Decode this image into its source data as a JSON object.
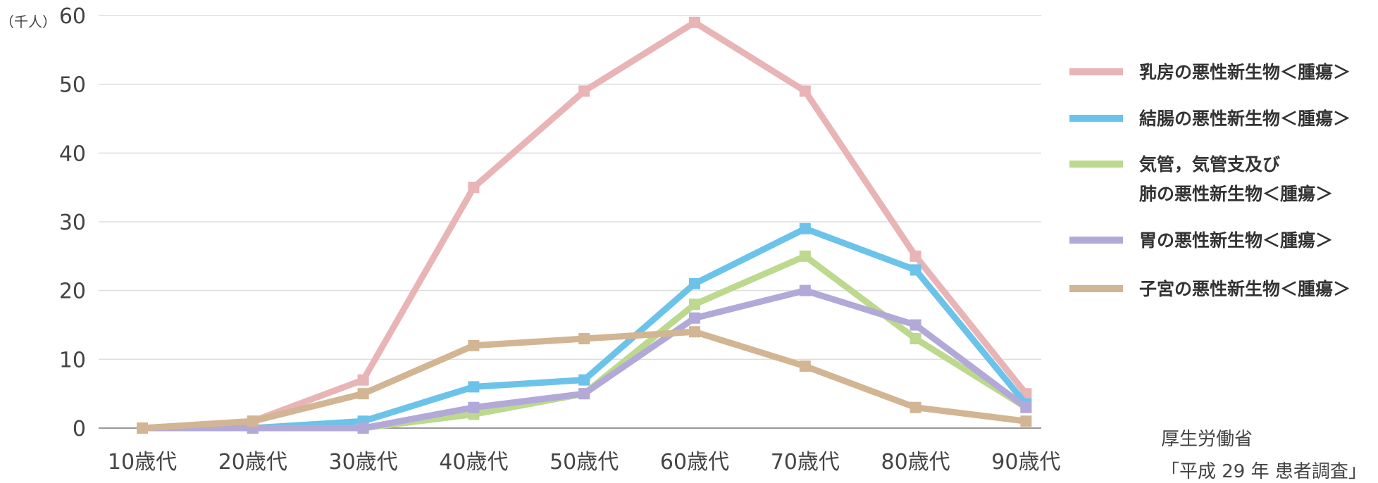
{
  "chart_data": {
    "type": "line",
    "unit_label": "（千人）",
    "categories": [
      "10歳代",
      "20歳代",
      "30歳代",
      "40歳代",
      "50歳代",
      "60歳代",
      "70歳代",
      "80歳代",
      "90歳代"
    ],
    "ylim": [
      0,
      60
    ],
    "yticks": [
      0,
      10,
      20,
      30,
      40,
      50,
      60
    ],
    "grid": true,
    "legend_position": "right",
    "series": [
      {
        "name": "乳房の悪性新生物＜腫瘍＞",
        "name_lines": [
          "乳房の悪性新生物＜腫瘍＞"
        ],
        "color": "#e8b4b5",
        "values": [
          0,
          1,
          7,
          35,
          49,
          59,
          49,
          25,
          5
        ]
      },
      {
        "name": "結腸の悪性新生物＜腫瘍＞",
        "name_lines": [
          "結腸の悪性新生物＜腫瘍＞"
        ],
        "color": "#6cc3ea",
        "values": [
          0,
          0,
          1,
          6,
          7,
          21,
          29,
          23,
          3.5
        ]
      },
      {
        "name": "気管，気管支及び肺の悪性新生物＜腫瘍＞",
        "name_lines": [
          "気管，気管支及び",
          "肺の悪性新生物＜腫瘍＞"
        ],
        "color": "#bcd98d",
        "values": [
          0,
          0,
          0,
          2,
          5,
          18,
          25,
          13,
          3
        ]
      },
      {
        "name": "胃の悪性新生物＜腫瘍＞",
        "name_lines": [
          "胃の悪性新生物＜腫瘍＞"
        ],
        "color": "#b2a9d8",
        "values": [
          0,
          0,
          0,
          3,
          5,
          16,
          20,
          15,
          3
        ]
      },
      {
        "name": "子宮の悪性新生物＜腫瘍＞",
        "name_lines": [
          "子宮の悪性新生物＜腫瘍＞"
        ],
        "color": "#d2b593",
        "values": [
          0,
          1,
          5,
          12,
          13,
          14,
          9,
          3,
          1
        ]
      }
    ],
    "source": [
      "厚生労働省",
      "「平成 29 年 患者調査」"
    ],
    "gridline_color": "#dddddd",
    "axis_color": "#999999"
  }
}
